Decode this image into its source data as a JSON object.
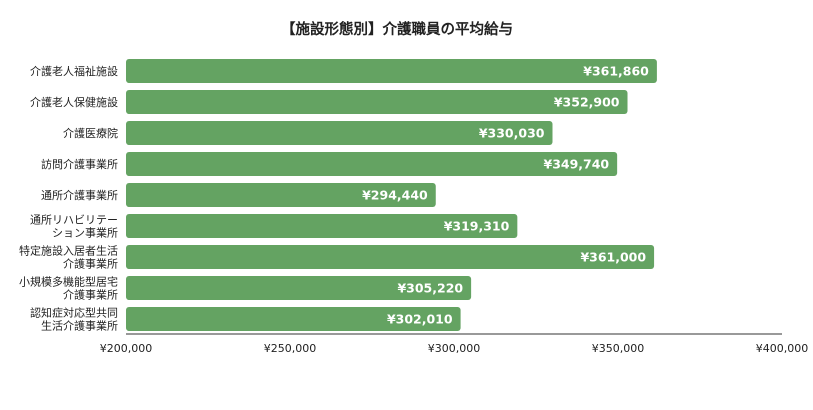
{
  "chart_data": {
    "type": "bar",
    "orientation": "horizontal",
    "title": "【施設形態別】介護職員の平均給与",
    "categories": [
      [
        "介護老人福祉施設"
      ],
      [
        "介護老人保健施設"
      ],
      [
        "介護医療院"
      ],
      [
        "訪問介護事業所"
      ],
      [
        "通所介護事業所"
      ],
      [
        "通所リハビリテー",
        "ション事業所"
      ],
      [
        "特定施設入居者生活",
        "介護事業所"
      ],
      [
        "小規模多機能型居宅",
        "介護事業所"
      ],
      [
        "認知症対応型共同",
        "生活介護事業所"
      ]
    ],
    "values": [
      361860,
      352900,
      330030,
      349740,
      294440,
      319310,
      361000,
      305220,
      302010
    ],
    "data_labels": [
      "¥361,860",
      "¥352,900",
      "¥330,030",
      "¥349,740",
      "¥294,440",
      "¥319,310",
      "¥361,000",
      "¥305,220",
      "¥302,010"
    ],
    "xlim": [
      200000,
      400000
    ],
    "x_ticks": [
      200000,
      250000,
      300000,
      350000,
      400000
    ],
    "x_tick_labels": [
      "¥200,000",
      "¥250,000",
      "¥300,000",
      "¥350,000",
      "¥400,000"
    ],
    "bar_color": "#64a362",
    "grid": false,
    "legend": "none"
  }
}
